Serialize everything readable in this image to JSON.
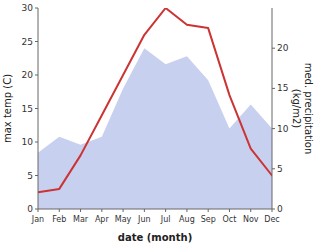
{
  "chart_data": {
    "type": "line",
    "categories": [
      "Jan",
      "Feb",
      "Mar",
      "Apr",
      "May",
      "Jun",
      "Jul",
      "Aug",
      "Sep",
      "Oct",
      "Nov",
      "Dec"
    ],
    "xlabel": "date (month)",
    "ylabel": "max temp (C)",
    "y2label": "med. precipitation\n(kg/m2)",
    "series": [
      {
        "type": "area",
        "axis": "y2",
        "color": "#c8d0f0",
        "values": [
          7,
          9,
          8,
          9,
          15,
          20,
          18,
          19,
          16,
          10,
          13,
          10
        ]
      },
      {
        "type": "line",
        "color": "#cc3333",
        "values": [
          2.5,
          3.0,
          8.0,
          14.0,
          20.0,
          26.0,
          30.0,
          27.5,
          27.0,
          17.0,
          9.0,
          5.0
        ]
      }
    ],
    "ylim": [
      0,
      30
    ],
    "yticks": [
      0,
      5,
      10,
      15,
      20,
      25,
      30
    ],
    "y2lim": [
      0,
      25
    ],
    "y2ticks": [
      0,
      5,
      10,
      15,
      20
    ],
    "grid": false
  }
}
